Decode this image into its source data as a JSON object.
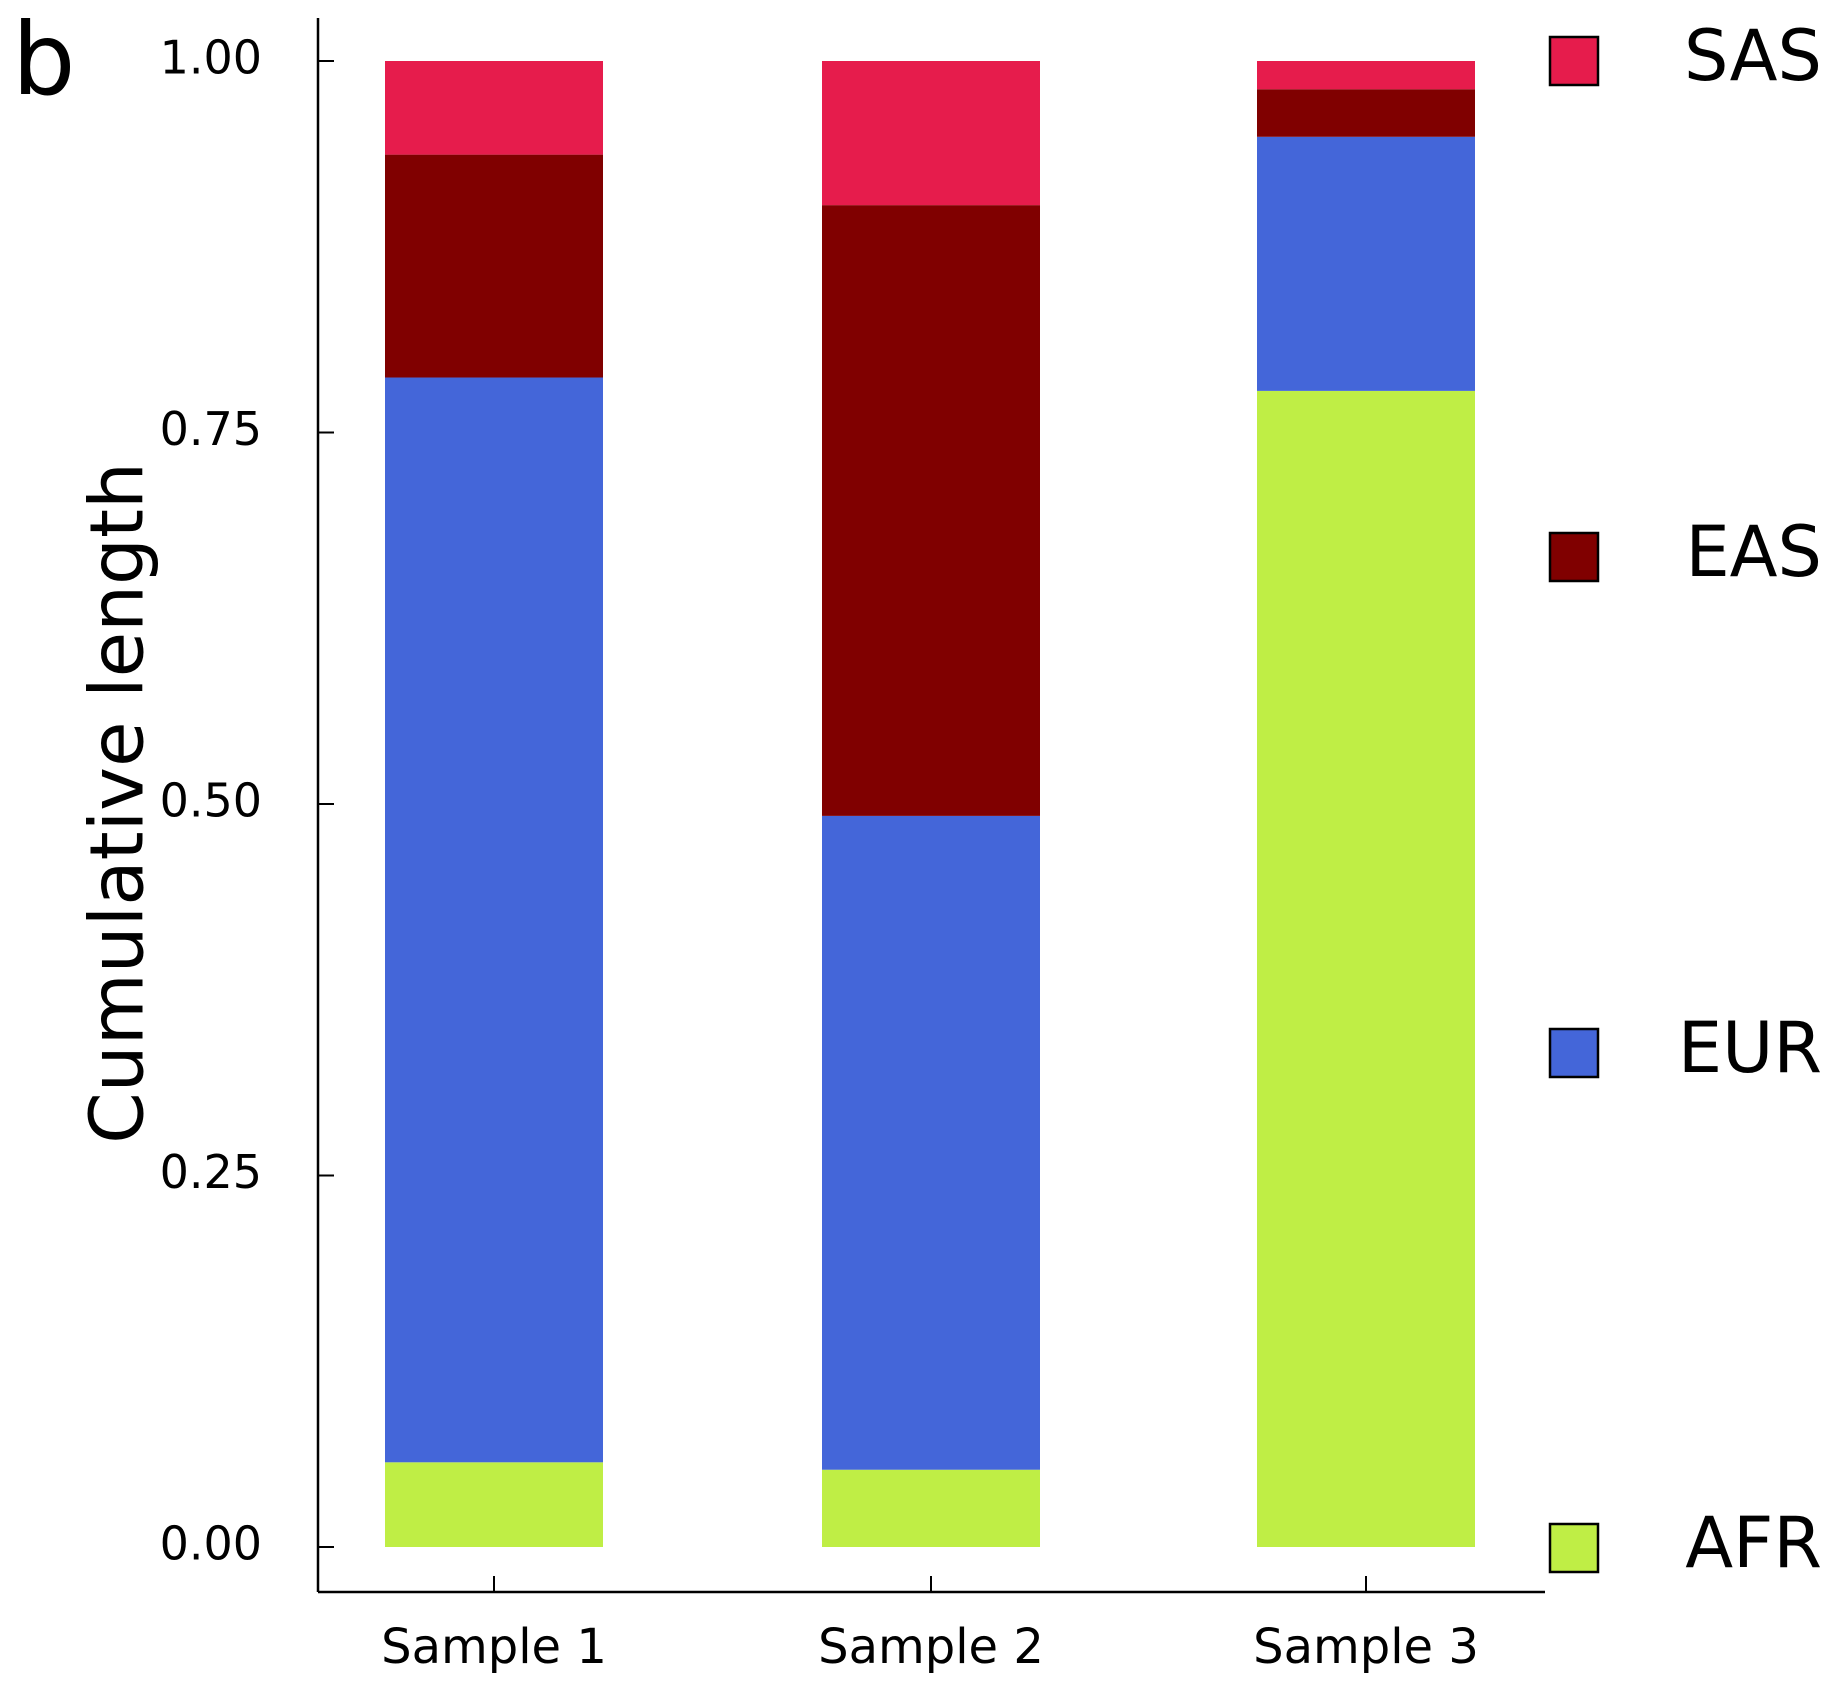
{
  "panel_label": "b",
  "chart_data": {
    "type": "bar",
    "stacked": true,
    "title": "",
    "xlabel": "",
    "ylabel": "Cumulative length",
    "ylim": [
      0,
      1
    ],
    "yticks": [
      "0.00",
      "0.25",
      "0.50",
      "0.75",
      "1.00"
    ],
    "categories": [
      "Sample 1",
      "Sample 2",
      "Sample 3"
    ],
    "series": [
      {
        "name": "AFR",
        "color": "#bfee45",
        "values": [
          0.057,
          0.052,
          0.778
        ]
      },
      {
        "name": "EUR",
        "color": "#4466d9",
        "values": [
          0.73,
          0.44,
          0.171
        ]
      },
      {
        "name": "EAS",
        "color": "#800000",
        "values": [
          0.15,
          0.411,
          0.032
        ]
      },
      {
        "name": "SAS",
        "color": "#e61c4c",
        "values": [
          0.063,
          0.097,
          0.019
        ]
      }
    ],
    "legend_order": [
      "SAS",
      "EAS",
      "EUR",
      "AFR"
    ],
    "legend_position": "right",
    "grid": false
  }
}
